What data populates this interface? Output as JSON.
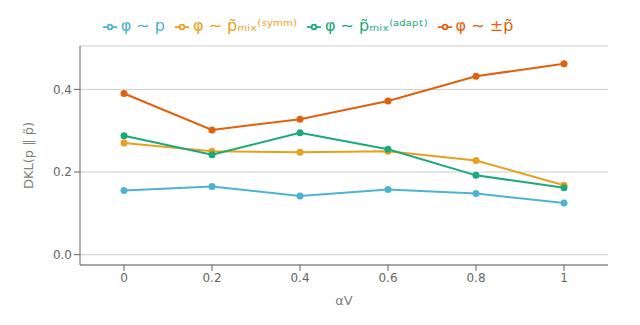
{
  "chart_data": {
    "type": "line",
    "x": [
      0,
      0.2,
      0.4,
      0.6,
      0.8,
      1.0
    ],
    "series": [
      {
        "name": "φ ∼ p",
        "color": "#4eb3d3",
        "marker": "circle",
        "values": [
          0.155,
          0.165,
          0.142,
          0.158,
          0.148,
          0.125
        ]
      },
      {
        "name": "φ ∼ p̃ₘᵢₓ⁽ˢʸᵐᵐ⁾",
        "color": "#e8a020",
        "marker": "circle",
        "values": [
          0.27,
          0.25,
          0.248,
          0.25,
          0.228,
          0.168
        ]
      },
      {
        "name": "φ ∼ p̃ₘᵢₓ⁽ᵃᵈᵃᵖᵗ⁾",
        "color": "#1ba87a",
        "marker": "circle",
        "values": [
          0.288,
          0.242,
          0.295,
          0.255,
          0.192,
          0.162
        ]
      },
      {
        "name": "φ ∼ ±p̃",
        "color": "#e06010",
        "marker": "circle",
        "values": [
          0.39,
          0.302,
          0.328,
          0.372,
          0.432,
          0.462
        ]
      }
    ],
    "x_label": "αV",
    "y_label": "DKL(p ‖ p̃)",
    "xlim": [
      -0.1,
      1.1
    ],
    "ylim": [
      -0.025,
      0.505
    ],
    "xticks": [
      0,
      0.2,
      0.4,
      0.6,
      0.8,
      1
    ],
    "yticks": [
      {
        "value": 0,
        "label": "0.0"
      },
      {
        "value": 0.2,
        "label": "0.2"
      },
      {
        "value": 0.4,
        "label": "0.4"
      }
    ],
    "grid": true,
    "legend": "top"
  }
}
